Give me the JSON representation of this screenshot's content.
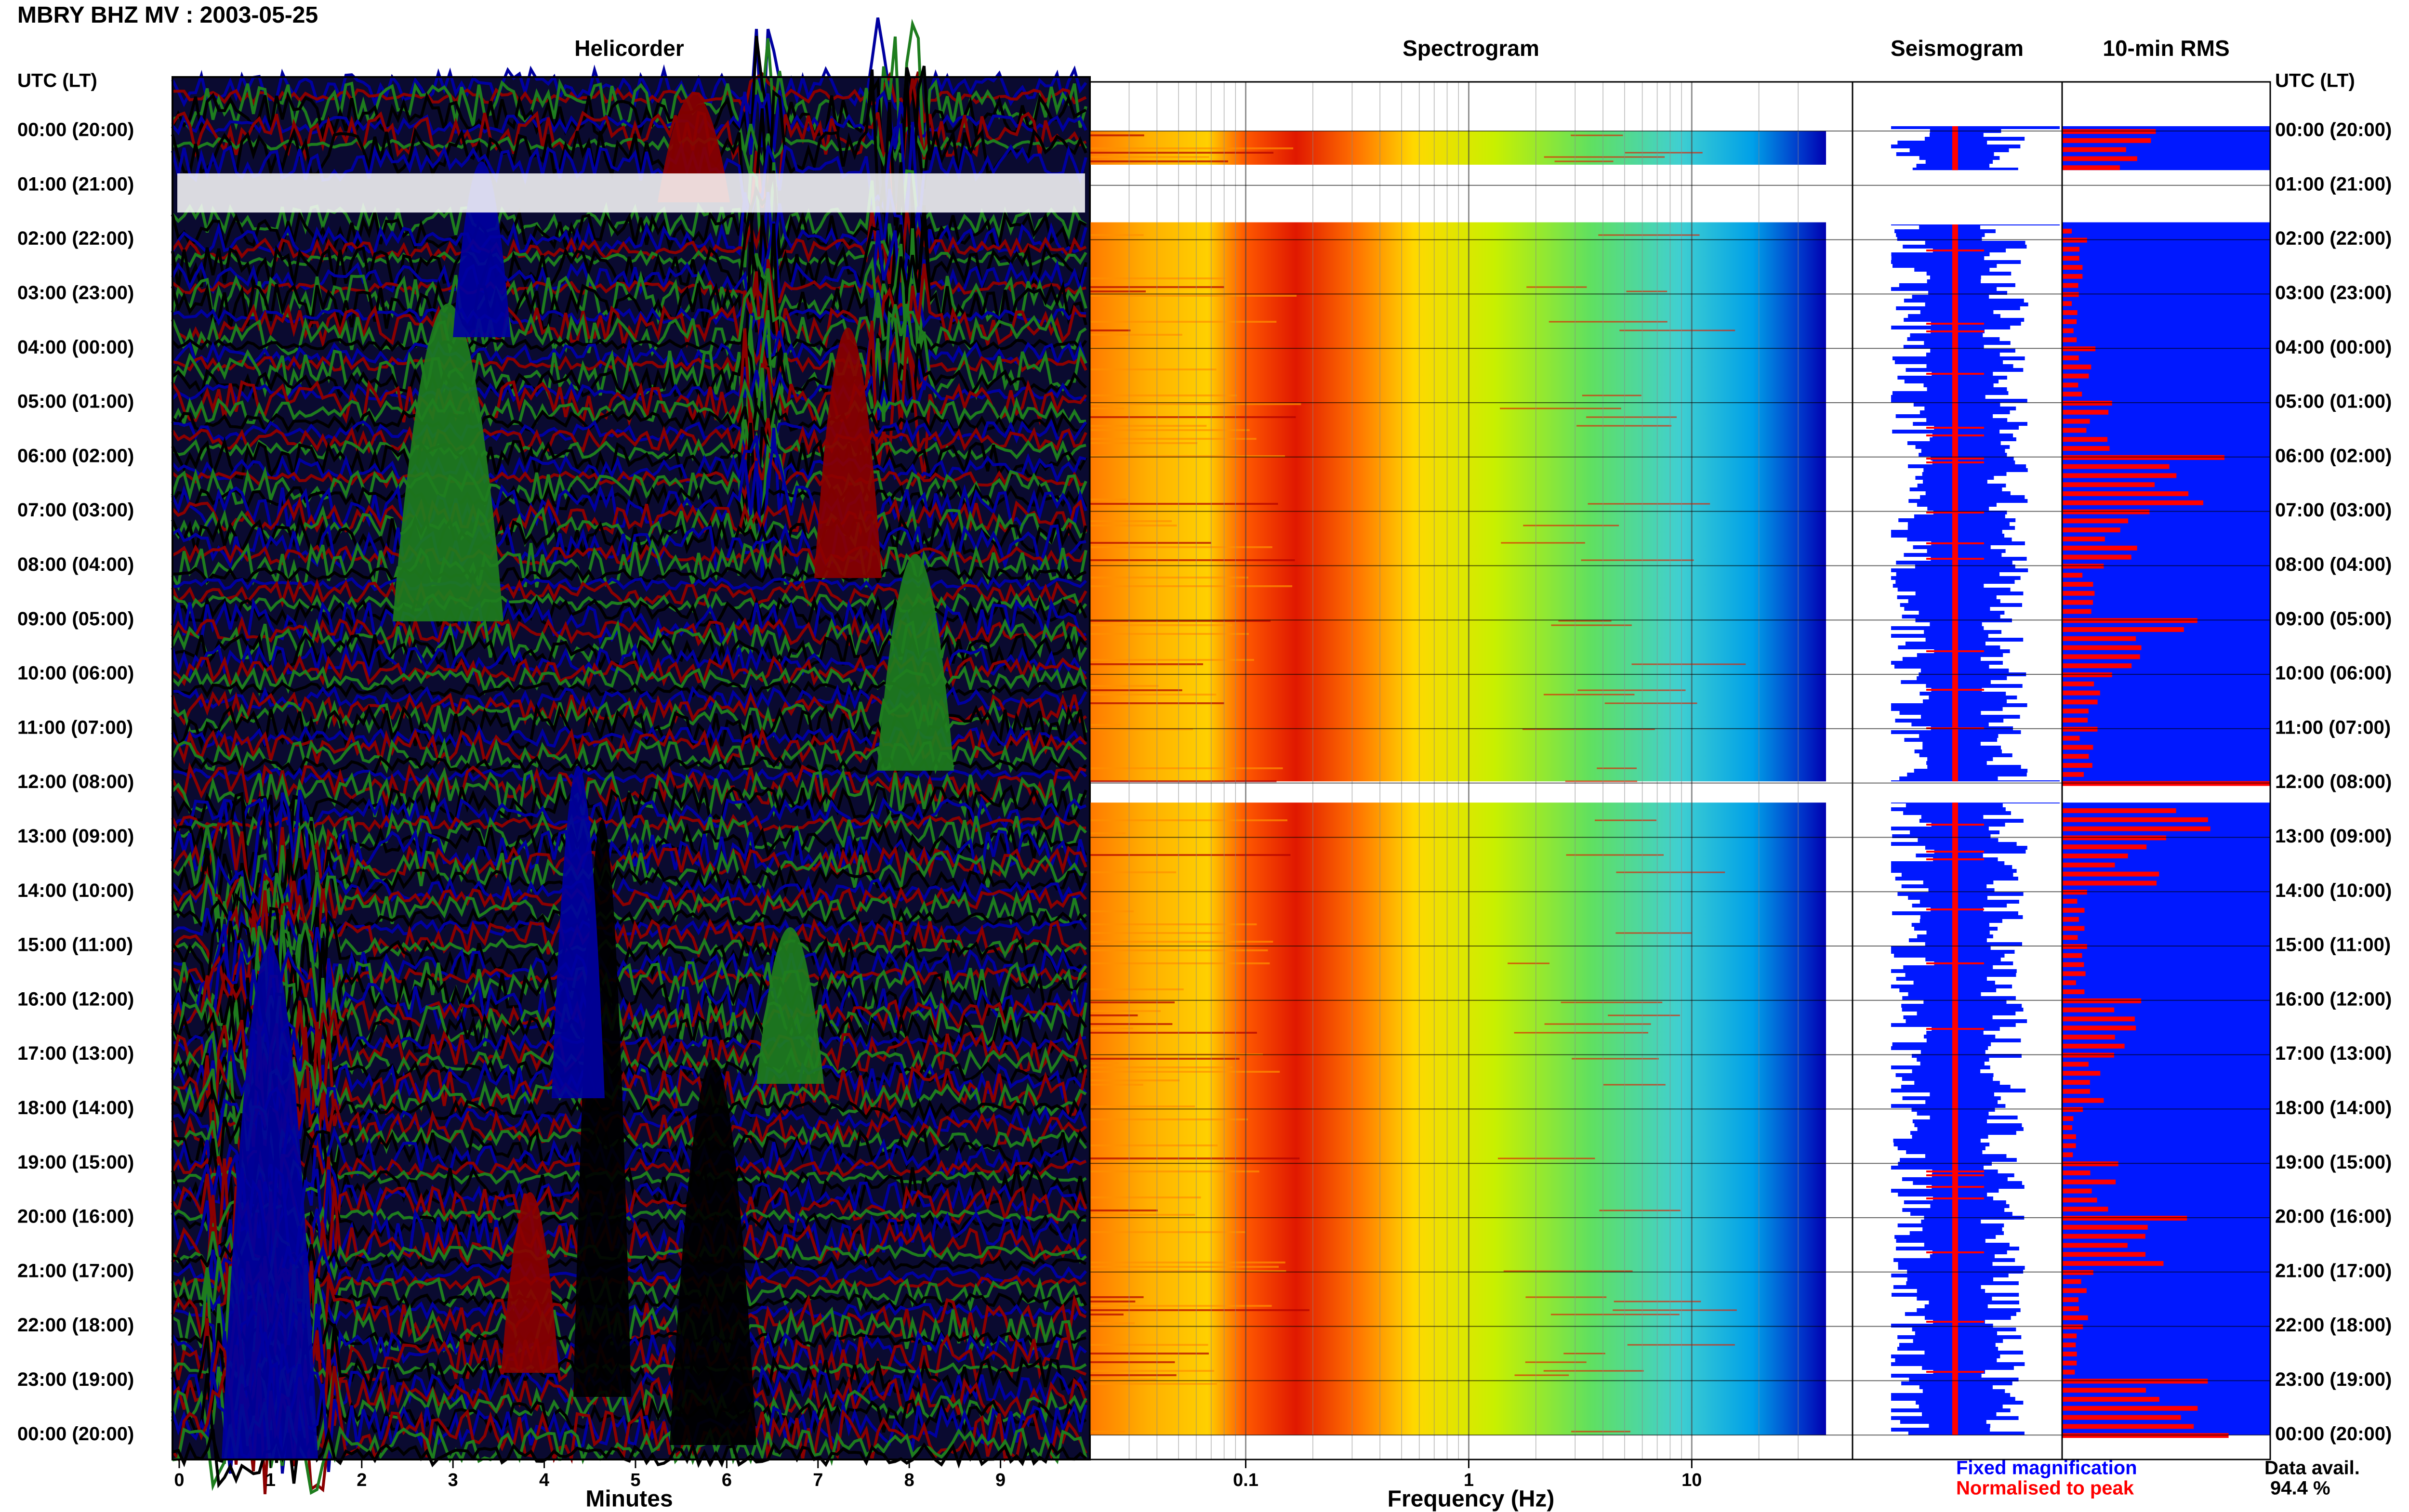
{
  "header": {
    "title": "MBRY BHZ MV : 2003-05-25"
  },
  "panels": {
    "helicorder": "Helicorder",
    "spectrogram": "Spectrogram",
    "seismogram": "Seismogram",
    "rms": "10-min RMS"
  },
  "axis_left_header": "UTC (LT)",
  "axis_right_header": "UTC (LT)",
  "time_labels": [
    "00:00 (20:00)",
    "01:00 (21:00)",
    "02:00 (22:00)",
    "03:00 (23:00)",
    "04:00 (00:00)",
    "05:00 (01:00)",
    "06:00 (02:00)",
    "07:00 (03:00)",
    "08:00 (04:00)",
    "09:00 (05:00)",
    "10:00 (06:00)",
    "11:00 (07:00)",
    "12:00 (08:00)",
    "13:00 (09:00)",
    "14:00 (10:00)",
    "15:00 (11:00)",
    "16:00 (12:00)",
    "17:00 (13:00)",
    "18:00 (14:00)",
    "19:00 (15:00)",
    "20:00 (16:00)",
    "21:00 (17:00)",
    "22:00 (18:00)",
    "23:00 (19:00)",
    "00:00 (20:00)"
  ],
  "footer": {
    "minutes_label": "Minutes",
    "frequency_label": "Frequency (Hz)",
    "fixed_mag": "Fixed magnification",
    "normalised": "Normalised to peak",
    "avail_label": "Data avail.",
    "avail_value": "94.4 %"
  },
  "colors": {
    "blue": "#0000a0",
    "red": "#8b0000",
    "green": "#1e7d1e",
    "black": "#000000",
    "rms_blue": "#0018ff",
    "rms_red": "#ff0000",
    "fixed_mag_text": "#0000ff",
    "normalised_text": "#ff0000"
  },
  "chart_data": [
    {
      "type": "line",
      "title": "Helicorder",
      "xlabel": "Minutes",
      "ylabel": "UTC (LT)",
      "x_ticks": [
        "0",
        "1",
        "2",
        "3",
        "4",
        "5",
        "6",
        "7",
        "8",
        "9"
      ],
      "xlim": [
        0,
        10
      ],
      "rows": 144,
      "series_colors": [
        "blue",
        "red",
        "green",
        "black"
      ],
      "data_gaps_hours": [
        [
          0.7,
          1.6
        ]
      ],
      "note_events_at_minutes": [
        3.6,
        5.6
      ]
    },
    {
      "type": "heatmap",
      "title": "Spectrogram",
      "xlabel": "Frequency (Hz)",
      "x_scale": "log",
      "xlim": [
        0.02,
        40
      ],
      "x_ticks": [
        "0.1",
        "1",
        "10"
      ],
      "data_gaps_hours": [
        [
          0.6,
          1.7
        ],
        [
          11.95,
          12.35
        ]
      ]
    },
    {
      "type": "line",
      "title": "Seismogram",
      "legend": [
        "Fixed magnification",
        "Normalised to peak"
      ]
    },
    {
      "type": "bar",
      "title": "10-min RMS",
      "orientation": "horizontal",
      "rms_relative_by_hour": [
        0.45,
        0.0,
        0.12,
        0.08,
        0.16,
        0.24,
        0.78,
        0.42,
        0.2,
        0.65,
        0.24,
        0.17,
        1.0,
        0.5,
        0.12,
        0.12,
        0.38,
        0.25,
        0.1,
        0.27,
        0.6,
        0.15,
        0.1,
        0.7,
        0.8
      ]
    }
  ]
}
